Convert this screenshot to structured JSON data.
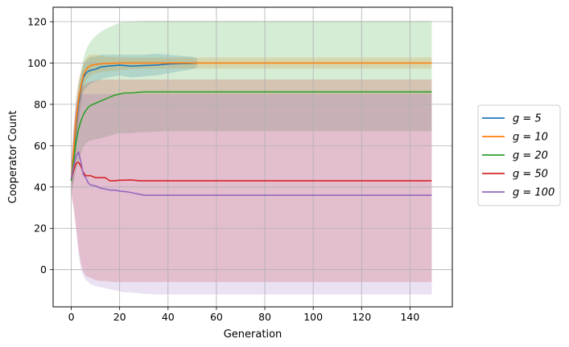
{
  "chart_data": {
    "type": "line",
    "xlabel": "Generation",
    "ylabel": "Cooperator Count",
    "xlim": [
      -7.5,
      157.5
    ],
    "ylim": [
      -18,
      127
    ],
    "xticks": [
      0,
      20,
      40,
      60,
      80,
      100,
      120,
      140
    ],
    "yticks": [
      0,
      20,
      40,
      60,
      80,
      100,
      120
    ],
    "grid": true,
    "legend_position": "right-outside",
    "series": [
      {
        "name": "g = 5",
        "color": "#1f77b4",
        "x": [
          0,
          1,
          2,
          3,
          4,
          5,
          6,
          7,
          8,
          10,
          12,
          15,
          20,
          25,
          30,
          35,
          40,
          45,
          50,
          52
        ],
        "values": [
          43,
          55,
          70,
          80,
          88,
          93,
          95,
          96,
          96.5,
          97,
          98,
          98.5,
          99,
          98.5,
          98.8,
          99,
          99.5,
          99.7,
          99.8,
          100
        ],
        "band_lower": [
          38,
          45,
          57,
          70,
          80,
          86,
          88,
          89,
          90,
          91,
          92,
          93,
          94,
          93,
          93.5,
          94,
          95,
          96,
          97,
          98
        ],
        "band_upper": [
          48,
          65,
          82,
          90,
          95,
          99,
          101,
          102,
          103,
          103,
          104,
          104,
          104,
          104,
          104,
          104.5,
          104,
          103.5,
          103,
          102
        ]
      },
      {
        "name": "g = 10",
        "color": "#ff7f0e",
        "x": [
          0,
          1,
          2,
          3,
          4,
          5,
          6,
          7,
          8,
          10,
          12,
          15,
          20,
          25,
          30,
          40,
          50,
          60,
          80,
          100,
          120,
          149
        ],
        "values": [
          43,
          58,
          72,
          82,
          89,
          94,
          96.5,
          98,
          98.8,
          99.3,
          99.6,
          99.8,
          100,
          100,
          100,
          100,
          100,
          100,
          100,
          100,
          100,
          100
        ],
        "band_lower": [
          37,
          47,
          60,
          72,
          82,
          88,
          91,
          93,
          94,
          95,
          95.5,
          96,
          96.5,
          97,
          97.2,
          97.3,
          97.3,
          97.3,
          97.3,
          97.3,
          97.3,
          97.3
        ],
        "band_upper": [
          49,
          69,
          84,
          92,
          96,
          100,
          102,
          103.5,
          104,
          104,
          103.5,
          103,
          102.8,
          102.7,
          102.7,
          102.7,
          102.7,
          102.7,
          102.7,
          102.7,
          102.7,
          102.7
        ]
      },
      {
        "name": "g = 20",
        "color": "#2ca02c",
        "x": [
          0,
          1,
          2,
          3,
          4,
          5,
          6,
          7,
          8,
          10,
          12,
          15,
          18,
          20,
          22,
          25,
          28,
          30,
          40,
          60,
          80,
          100,
          120,
          149
        ],
        "values": [
          43,
          53,
          62,
          68,
          72,
          75,
          77,
          78.5,
          79.5,
          80.5,
          81.5,
          83,
          84.5,
          85,
          85.5,
          85.5,
          85.8,
          86,
          86,
          86,
          86,
          86,
          86,
          86
        ],
        "band_lower": [
          36,
          42,
          48,
          52,
          56,
          59,
          61,
          62,
          62.5,
          63,
          63.5,
          64.5,
          65.5,
          66,
          66,
          66,
          66.5,
          66.5,
          67,
          67,
          67,
          67,
          67,
          67
        ],
        "band_upper": [
          50,
          64,
          78,
          88,
          96,
          102,
          106,
          108.5,
          110.5,
          113,
          115,
          117,
          118.5,
          119.5,
          120,
          120.2,
          120.4,
          120.5,
          120.5,
          120.5,
          120.5,
          120.5,
          120.5,
          120.5
        ]
      },
      {
        "name": "g = 50",
        "color": "#d62728",
        "x": [
          0,
          1,
          2,
          3,
          4,
          5,
          6,
          8,
          10,
          12,
          14,
          16,
          18,
          20,
          22,
          24,
          26,
          28,
          30,
          40,
          60,
          80,
          100,
          120,
          149
        ],
        "values": [
          44,
          48,
          51.5,
          52,
          50,
          47,
          45.5,
          45.5,
          44.5,
          44.5,
          44.5,
          43,
          43,
          43.3,
          43.3,
          43.4,
          43.3,
          43,
          43,
          43,
          43,
          43,
          43,
          43,
          43
        ],
        "band_lower": [
          37,
          30,
          20,
          10,
          3,
          -1,
          -3,
          -4,
          -5,
          -5.5,
          -5.5,
          -5.8,
          -6,
          -6,
          -6,
          -6,
          -6,
          -6,
          -6,
          -6,
          -6,
          -6,
          -6,
          -6,
          -6
        ],
        "band_upper": [
          51,
          66,
          78,
          85,
          88,
          89,
          90,
          91,
          91.5,
          92,
          92,
          92,
          92,
          92,
          92,
          92,
          92,
          92,
          92,
          92,
          92,
          92,
          92,
          92,
          92
        ]
      },
      {
        "name": "g = 100",
        "color": "#9467bd",
        "x": [
          0,
          1,
          2,
          3,
          4,
          5,
          6,
          7,
          8,
          10,
          12,
          14,
          16,
          18,
          20,
          22,
          24,
          26,
          28,
          30,
          35,
          40,
          60,
          80,
          100,
          120,
          149
        ],
        "values": [
          44,
          50,
          55,
          57,
          52,
          46,
          44.5,
          42,
          41,
          40.5,
          39.5,
          39,
          38.5,
          38.5,
          38,
          37.8,
          37.5,
          37,
          36.5,
          36,
          36,
          36,
          36,
          36,
          36,
          36,
          36
        ],
        "band_lower": [
          36,
          30,
          20,
          8,
          0,
          -3,
          -5,
          -6,
          -7,
          -8,
          -8.5,
          -9,
          -9.5,
          -10,
          -10.5,
          -11,
          -11,
          -11.2,
          -11.5,
          -11.7,
          -12,
          -12,
          -12,
          -12,
          -12,
          -12,
          -12
        ],
        "band_upper": [
          52,
          70,
          80,
          84,
          85,
          85,
          85,
          85,
          85,
          85,
          85,
          85,
          85,
          85,
          85,
          85,
          85,
          85,
          85,
          85,
          85,
          85,
          85,
          85,
          85,
          85,
          85
        ]
      }
    ]
  }
}
